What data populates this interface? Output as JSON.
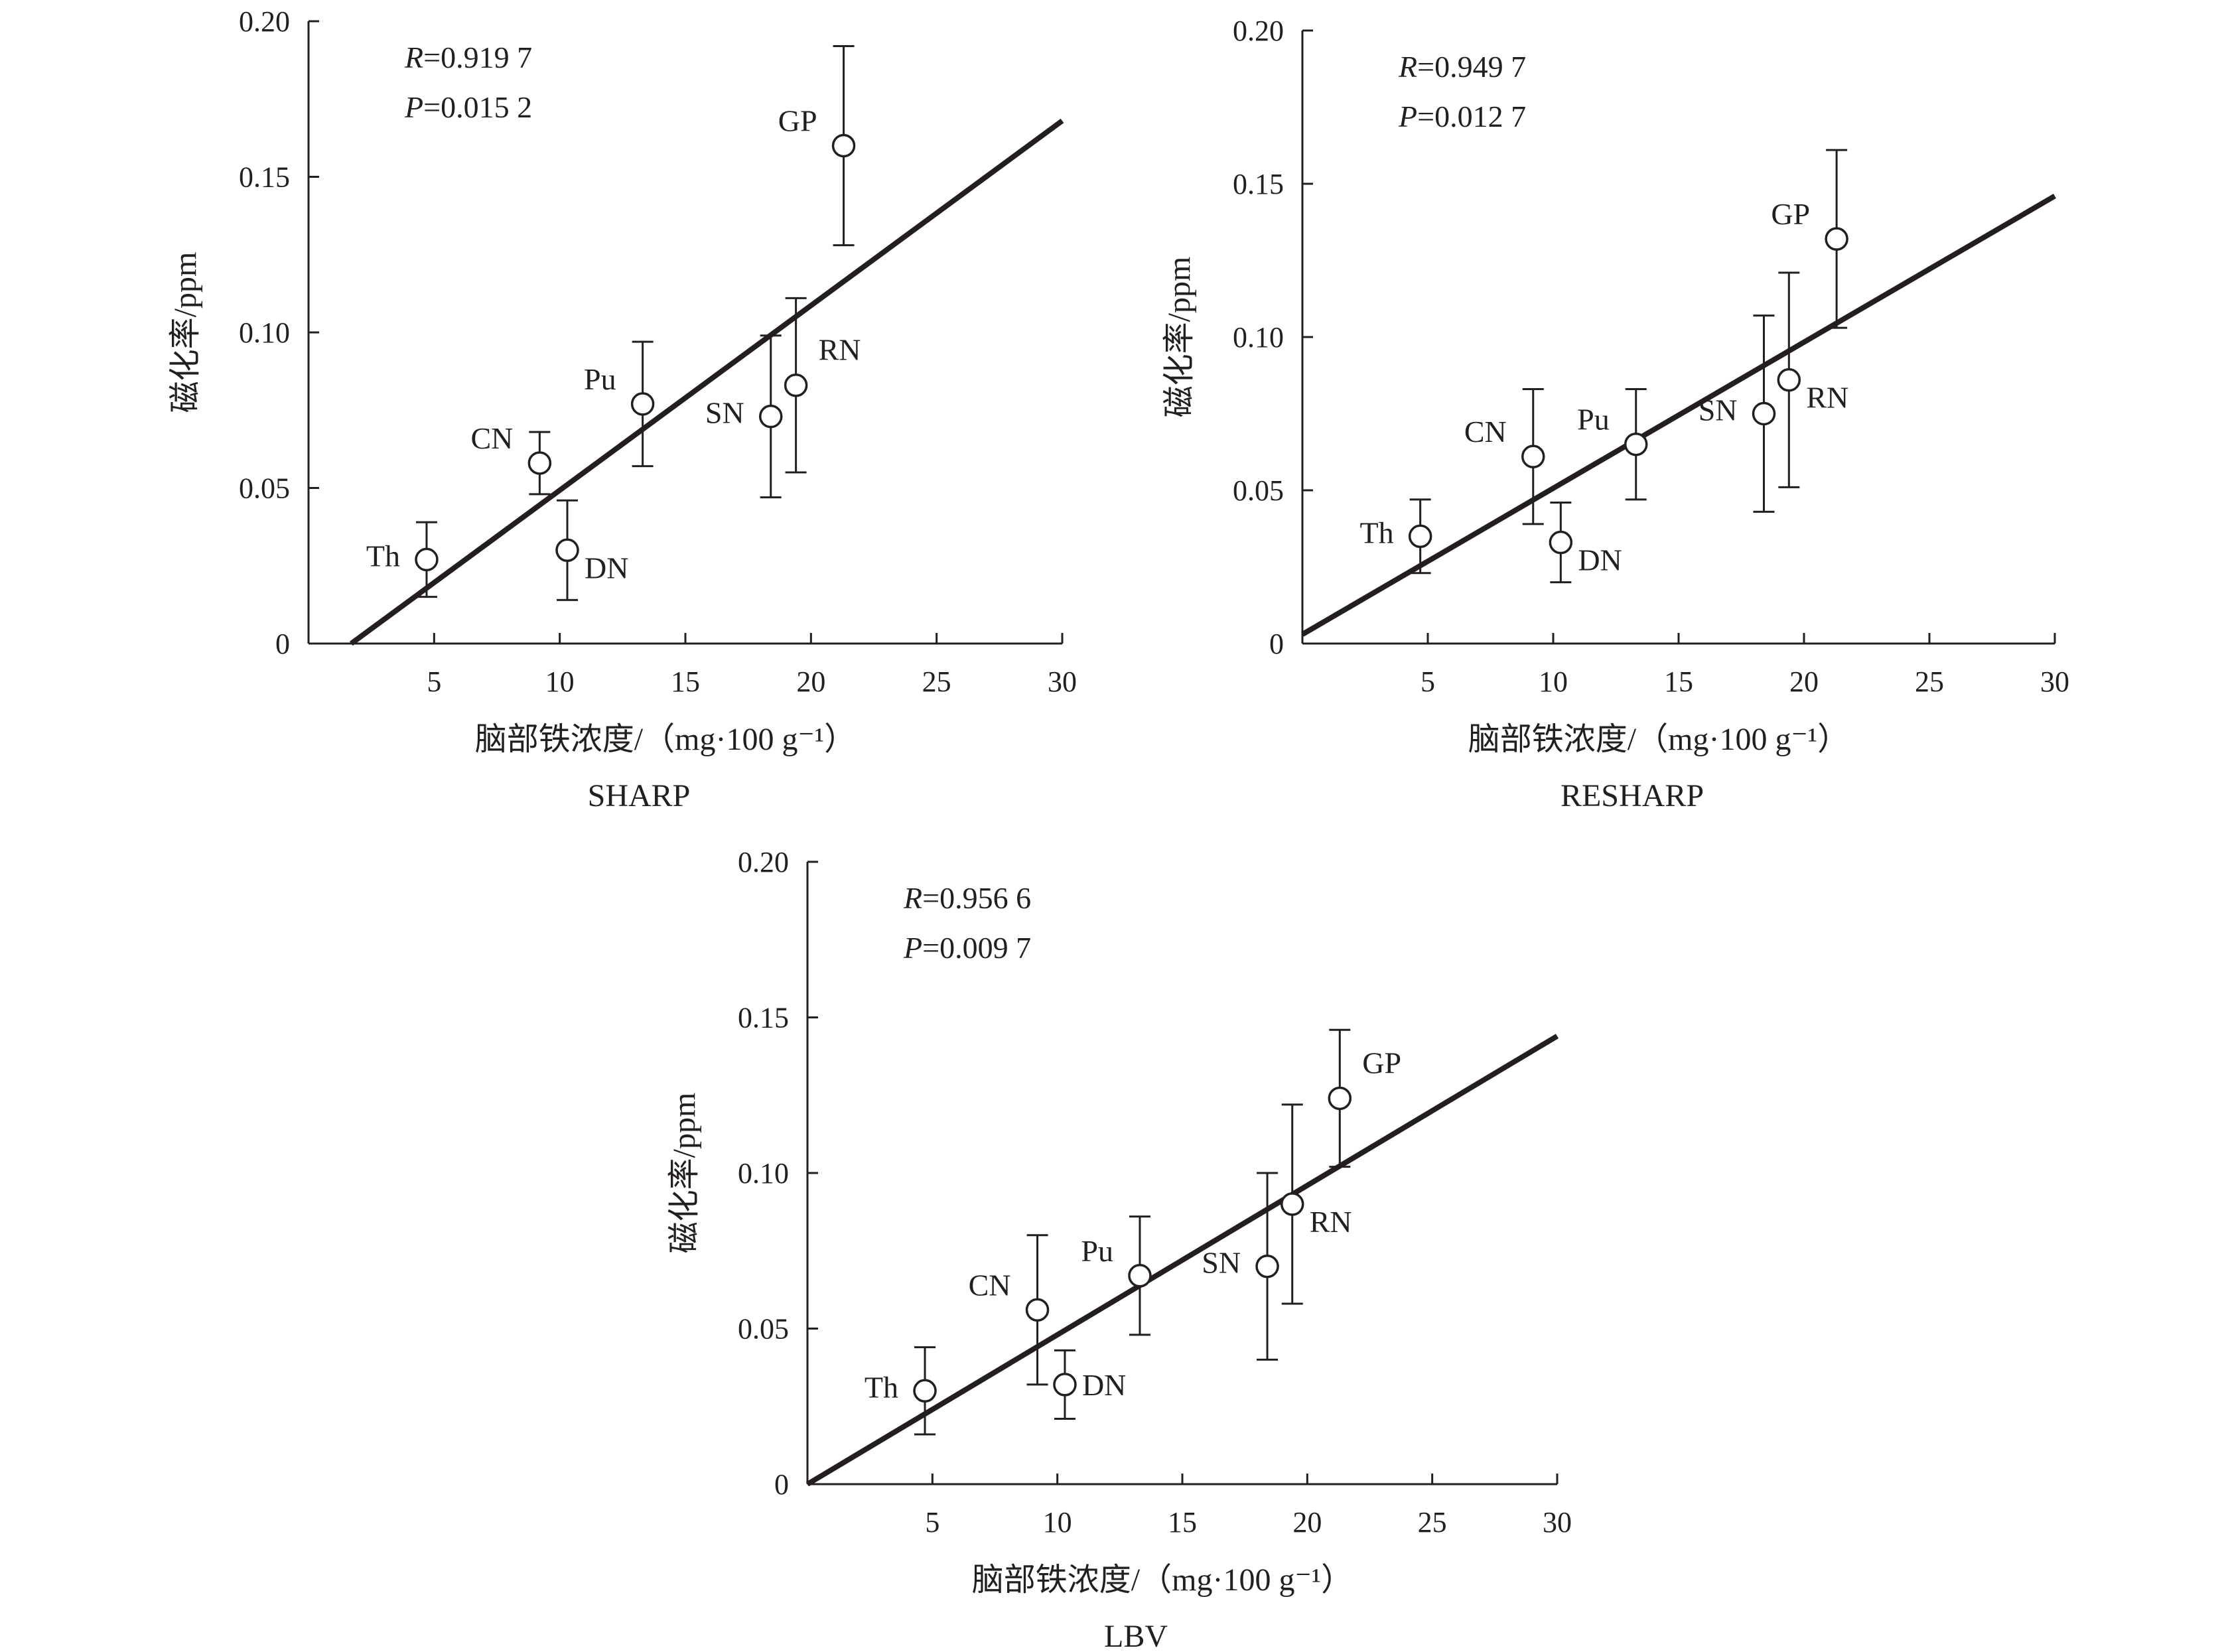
{
  "colors": {
    "ink": "#231f20",
    "background": "#ffffff"
  },
  "chart_data": [
    {
      "type": "scatter",
      "panel_title": "SHARP",
      "xlabel": "脑部铁浓度/（mg·100 g⁻¹）",
      "ylabel": "磁化率/ppm",
      "xlim": [
        0,
        30
      ],
      "ylim": [
        0,
        0.2
      ],
      "x_ticks": [
        5,
        10,
        15,
        20,
        25,
        30
      ],
      "y_ticks": [
        0,
        0.05,
        0.1,
        0.15,
        0.2
      ],
      "x_tick_labels": [
        "5",
        "10",
        "15",
        "20",
        "25",
        "30"
      ],
      "y_tick_labels": [
        "0",
        "0.05",
        "0.10",
        "0.15",
        "0.20"
      ],
      "stats": {
        "R": "0.919 7",
        "P": "0.015 2"
      },
      "stat_labels": {
        "R": "R",
        "P": "P"
      },
      "points": [
        {
          "label": "Th",
          "x": 4.7,
          "y": 0.027,
          "err_low": 0.015,
          "err_high": 0.039,
          "label_side": "left"
        },
        {
          "label": "CN",
          "x": 9.2,
          "y": 0.058,
          "err_low": 0.048,
          "err_high": 0.068,
          "label_side": "upper-left"
        },
        {
          "label": "DN",
          "x": 10.3,
          "y": 0.03,
          "err_low": 0.014,
          "err_high": 0.046,
          "label_side": "lower-right"
        },
        {
          "label": "Pu",
          "x": 13.3,
          "y": 0.077,
          "err_low": 0.057,
          "err_high": 0.097,
          "label_side": "upper-left"
        },
        {
          "label": "SN",
          "x": 18.4,
          "y": 0.073,
          "err_low": 0.047,
          "err_high": 0.099,
          "label_side": "left"
        },
        {
          "label": "RN",
          "x": 19.4,
          "y": 0.083,
          "err_low": 0.055,
          "err_high": 0.111,
          "label_side": "upper-right"
        },
        {
          "label": "GP",
          "x": 21.3,
          "y": 0.16,
          "err_low": 0.128,
          "err_high": 0.192,
          "label_side": "upper-left"
        }
      ],
      "fit_line": {
        "x": [
          1.7,
          30
        ],
        "y": [
          0.0,
          0.168
        ]
      }
    },
    {
      "type": "scatter",
      "panel_title": "RESHARP",
      "xlabel": "脑部铁浓度/（mg·100 g⁻¹）",
      "ylabel": "磁化率/ppm",
      "xlim": [
        0,
        30
      ],
      "ylim": [
        0,
        0.2
      ],
      "x_ticks": [
        5,
        10,
        15,
        20,
        25,
        30
      ],
      "y_ticks": [
        0,
        0.05,
        0.1,
        0.15,
        0.2
      ],
      "x_tick_labels": [
        "5",
        "10",
        "15",
        "20",
        "25",
        "30"
      ],
      "y_tick_labels": [
        "0",
        "0.05",
        "0.10",
        "0.15",
        "0.20"
      ],
      "stats": {
        "R": "0.949 7",
        "P": "0.012 7"
      },
      "stat_labels": {
        "R": "R",
        "P": "P"
      },
      "points": [
        {
          "label": "Th",
          "x": 4.7,
          "y": 0.035,
          "err_low": 0.023,
          "err_high": 0.047,
          "label_side": "left"
        },
        {
          "label": "CN",
          "x": 9.2,
          "y": 0.061,
          "err_low": 0.039,
          "err_high": 0.083,
          "label_side": "upper-left"
        },
        {
          "label": "DN",
          "x": 10.3,
          "y": 0.033,
          "err_low": 0.02,
          "err_high": 0.046,
          "label_side": "lower-right"
        },
        {
          "label": "Pu",
          "x": 13.3,
          "y": 0.065,
          "err_low": 0.047,
          "err_high": 0.083,
          "label_side": "upper-left"
        },
        {
          "label": "SN",
          "x": 18.4,
          "y": 0.075,
          "err_low": 0.043,
          "err_high": 0.107,
          "label_side": "left"
        },
        {
          "label": "RN",
          "x": 19.4,
          "y": 0.086,
          "err_low": 0.051,
          "err_high": 0.121,
          "label_side": "lower-right"
        },
        {
          "label": "GP",
          "x": 21.3,
          "y": 0.132,
          "err_low": 0.103,
          "err_high": 0.161,
          "label_side": "upper-left"
        }
      ],
      "fit_line": {
        "x": [
          0,
          30
        ],
        "y": [
          0.003,
          0.146
        ]
      }
    },
    {
      "type": "scatter",
      "panel_title": "LBV",
      "xlabel": "脑部铁浓度/（mg·100 g⁻¹）",
      "ylabel": "磁化率/ppm",
      "xlim": [
        0,
        30
      ],
      "ylim": [
        0,
        0.2
      ],
      "x_ticks": [
        5,
        10,
        15,
        20,
        25,
        30
      ],
      "y_ticks": [
        0,
        0.05,
        0.1,
        0.15,
        0.2
      ],
      "x_tick_labels": [
        "5",
        "10",
        "15",
        "20",
        "25",
        "30"
      ],
      "y_tick_labels": [
        "0",
        "0.05",
        "0.10",
        "0.15",
        "0.20"
      ],
      "stats": {
        "R": "0.956 6",
        "P": "0.009 7"
      },
      "stat_labels": {
        "R": "R",
        "P": "P"
      },
      "points": [
        {
          "label": "Th",
          "x": 4.7,
          "y": 0.03,
          "err_low": 0.016,
          "err_high": 0.044,
          "label_side": "left"
        },
        {
          "label": "CN",
          "x": 9.2,
          "y": 0.056,
          "err_low": 0.032,
          "err_high": 0.08,
          "label_side": "upper-left"
        },
        {
          "label": "DN",
          "x": 10.3,
          "y": 0.032,
          "err_low": 0.021,
          "err_high": 0.043,
          "label_side": "right"
        },
        {
          "label": "Pu",
          "x": 13.3,
          "y": 0.067,
          "err_low": 0.048,
          "err_high": 0.086,
          "label_side": "upper-left"
        },
        {
          "label": "SN",
          "x": 18.4,
          "y": 0.07,
          "err_low": 0.04,
          "err_high": 0.1,
          "label_side": "left"
        },
        {
          "label": "RN",
          "x": 19.4,
          "y": 0.09,
          "err_low": 0.058,
          "err_high": 0.122,
          "label_side": "lower-right"
        },
        {
          "label": "GP",
          "x": 21.3,
          "y": 0.124,
          "err_low": 0.102,
          "err_high": 0.146,
          "label_side": "upper-right"
        }
      ],
      "fit_line": {
        "x": [
          0,
          30
        ],
        "y": [
          0.0,
          0.144
        ]
      }
    }
  ]
}
